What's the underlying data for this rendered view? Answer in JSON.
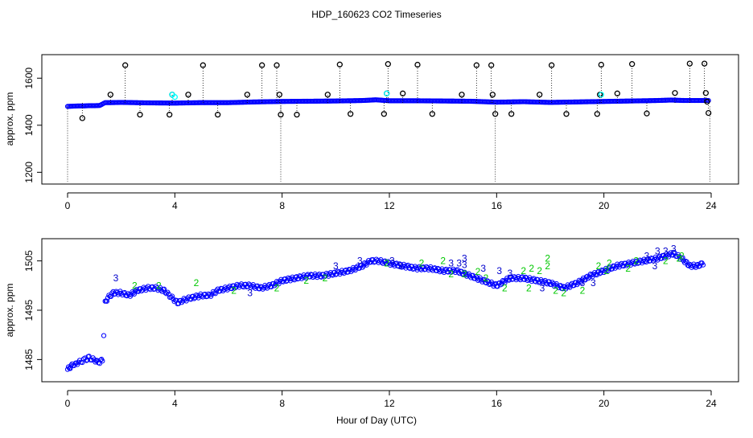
{
  "title": "HDP_160623  CO2 Timeseries",
  "xlabel": "Hour of Day (UTC)",
  "colors": {
    "axis": "#000000",
    "main_series": "#0000ff",
    "cyan_points": "#00ffff",
    "green_flag": "#00c800",
    "blue_flag": "#0000cc",
    "outlier": "#000000"
  },
  "chart_data": [
    {
      "type": "scatter",
      "panel": "top",
      "ylabel": "approx. ppm",
      "xlim": [
        0,
        24
      ],
      "ylim": [
        1150,
        1700
      ],
      "xticks": [
        0,
        4,
        8,
        12,
        16,
        20,
        24
      ],
      "yticks": [
        1200,
        1400,
        1600
      ],
      "series": [
        {
          "x": [
            0,
            0.2,
            0.4,
            0.6,
            0.8,
            1.0,
            1.2,
            1.3,
            1.4,
            1.6,
            2.0,
            3.0,
            4.0,
            5.0,
            6.0,
            7.0,
            8.0,
            9.0,
            10.0,
            11.0,
            11.5,
            12.0,
            13.0,
            14.0,
            15.0,
            15.5,
            16.0,
            17.0,
            18.0,
            19.0,
            20.0,
            21.0,
            22.0,
            22.5,
            23.0,
            23.5,
            23.9
          ],
          "y": [
            1480,
            1481,
            1482,
            1482,
            1483,
            1483,
            1484,
            1490,
            1496,
            1496,
            1497,
            1495,
            1494,
            1496,
            1496,
            1499,
            1501,
            1502,
            1503,
            1505,
            1508,
            1504,
            1504,
            1503,
            1502,
            1500,
            1498,
            1500,
            1497,
            1499,
            1501,
            1503,
            1505,
            1507,
            1505,
            1505,
            1505
          ]
        }
      ],
      "outliers": {
        "x": [
          0.55,
          1.6,
          2.15,
          2.7,
          3.8,
          3.9,
          4.5,
          5.05,
          5.6,
          6.7,
          7.25,
          7.8,
          7.9,
          7.95,
          8.55,
          9.7,
          10.15,
          10.55,
          11.8,
          11.9,
          11.95,
          12.5,
          13.05,
          13.6,
          14.7,
          15.25,
          15.8,
          15.85,
          15.95,
          16.55,
          17.6,
          18.05,
          18.6,
          19.75,
          19.85,
          19.9,
          20.5,
          21.05,
          21.6,
          22.65,
          23.2,
          23.75,
          23.8,
          23.85,
          23.9
        ],
        "y": [
          1430,
          1530,
          1655,
          1445,
          1445,
          1530,
          1530,
          1655,
          1445,
          1530,
          1655,
          1655,
          1530,
          1445,
          1445,
          1530,
          1658,
          1448,
          1448,
          1535,
          1660,
          1535,
          1657,
          1448,
          1530,
          1655,
          1655,
          1530,
          1448,
          1448,
          1530,
          1655,
          1448,
          1448,
          1530,
          1657,
          1535,
          1660,
          1450,
          1537,
          1662,
          1662,
          1537,
          1500,
          1452
        ]
      },
      "cyan_points": {
        "x": [
          3.9,
          4.0,
          11.9,
          19.9
        ],
        "y": [
          1530,
          1520,
          1535,
          1530
        ]
      }
    },
    {
      "type": "scatter",
      "panel": "bottom",
      "ylabel": "approx. ppm",
      "xlim": [
        0,
        24
      ],
      "ylim": [
        1480.5,
        1509.5
      ],
      "xticks": [
        0,
        4,
        8,
        12,
        16,
        20,
        24
      ],
      "yticks": [
        1485,
        1495,
        1505
      ],
      "series": [
        {
          "x": [
            0,
            0.1,
            0.2,
            0.3,
            0.4,
            0.5,
            0.6,
            0.7,
            0.8,
            0.9,
            1.0,
            1.1,
            1.2,
            1.3,
            1.35,
            1.4,
            1.5,
            1.7,
            2.0,
            2.3,
            2.6,
            3.0,
            3.3,
            3.6,
            3.9,
            4.1,
            4.3,
            4.6,
            5.0,
            5.3,
            5.6,
            6.0,
            6.4,
            6.8,
            7.2,
            7.6,
            8.0,
            8.5,
            9.0,
            9.5,
            10.0,
            10.5,
            11.0,
            11.3,
            11.6,
            12.0,
            12.5,
            13.0,
            13.5,
            14.0,
            14.5,
            15.0,
            15.5,
            16.0,
            16.5,
            17.0,
            17.5,
            18.0,
            18.5,
            19.0,
            19.5,
            20.0,
            20.5,
            21.0,
            21.5,
            22.0,
            22.3,
            22.6,
            22.9,
            23.2,
            23.5,
            23.7
          ],
          "y": [
            1483,
            1483.5,
            1484,
            1484,
            1484.5,
            1484.5,
            1485,
            1485,
            1485.5,
            1485,
            1485,
            1484.5,
            1484.5,
            1485,
            1490,
            1496.5,
            1497.5,
            1498.5,
            1498.5,
            1498,
            1499,
            1499.5,
            1499.5,
            1499,
            1497.5,
            1496.5,
            1497,
            1497.5,
            1498,
            1498,
            1499,
            1499.5,
            1500,
            1500,
            1499.5,
            1500,
            1501,
            1501.5,
            1502,
            1502,
            1502.5,
            1503,
            1504,
            1505,
            1505,
            1504.5,
            1504,
            1503.5,
            1503.5,
            1503,
            1503,
            1502,
            1501,
            1500,
            1501.5,
            1501.5,
            1501,
            1500.5,
            1499.5,
            1500.5,
            1502,
            1503,
            1504,
            1504.5,
            1505,
            1505.5,
            1506,
            1506.5,
            1505.5,
            1504,
            1504,
            1504.5
          ]
        }
      ],
      "flag_labels": [
        {
          "text": "3",
          "x": 1.8,
          "y": 1501.5,
          "flag": "blue"
        },
        {
          "text": "2",
          "x": 2.5,
          "y": 1500,
          "flag": "green"
        },
        {
          "text": "2",
          "x": 3.4,
          "y": 1500,
          "flag": "green"
        },
        {
          "text": "2",
          "x": 4.8,
          "y": 1500.5,
          "flag": "green"
        },
        {
          "text": "2",
          "x": 6.2,
          "y": 1499,
          "flag": "green"
        },
        {
          "text": "3",
          "x": 6.8,
          "y": 1498.5,
          "flag": "blue"
        },
        {
          "text": "2",
          "x": 7.8,
          "y": 1499.5,
          "flag": "green"
        },
        {
          "text": "2",
          "x": 8.9,
          "y": 1501,
          "flag": "green"
        },
        {
          "text": "2",
          "x": 9.6,
          "y": 1501.5,
          "flag": "green"
        },
        {
          "text": "3",
          "x": 10.0,
          "y": 1504,
          "flag": "blue"
        },
        {
          "text": "3",
          "x": 10.9,
          "y": 1505,
          "flag": "blue"
        },
        {
          "text": "2",
          "x": 11.9,
          "y": 1504.5,
          "flag": "green"
        },
        {
          "text": "3",
          "x": 12.1,
          "y": 1505,
          "flag": "blue"
        },
        {
          "text": "3",
          "x": 12.4,
          "y": 1504,
          "flag": "blue"
        },
        {
          "text": "2",
          "x": 13.2,
          "y": 1504.5,
          "flag": "green"
        },
        {
          "text": "2",
          "x": 14.0,
          "y": 1505,
          "flag": "green"
        },
        {
          "text": "3",
          "x": 14.3,
          "y": 1504.5,
          "flag": "blue"
        },
        {
          "text": "3",
          "x": 14.6,
          "y": 1504.5,
          "flag": "blue"
        },
        {
          "text": "3",
          "x": 14.8,
          "y": 1505.5,
          "flag": "blue"
        },
        {
          "text": "3",
          "x": 14.8,
          "y": 1504.2,
          "flag": "blue"
        },
        {
          "text": "2",
          "x": 14.3,
          "y": 1502.3,
          "flag": "green"
        },
        {
          "text": "2",
          "x": 14.8,
          "y": 1502.3,
          "flag": "green"
        },
        {
          "text": "2",
          "x": 15.3,
          "y": 1502.8,
          "flag": "green"
        },
        {
          "text": "3",
          "x": 15.5,
          "y": 1503.5,
          "flag": "blue"
        },
        {
          "text": "2",
          "x": 15.6,
          "y": 1501.5,
          "flag": "green"
        },
        {
          "text": "3",
          "x": 16.1,
          "y": 1503,
          "flag": "blue"
        },
        {
          "text": "3",
          "x": 16.5,
          "y": 1502.5,
          "flag": "blue"
        },
        {
          "text": "2",
          "x": 16.3,
          "y": 1499.5,
          "flag": "green"
        },
        {
          "text": "2",
          "x": 17.0,
          "y": 1503,
          "flag": "green"
        },
        {
          "text": "2",
          "x": 17.3,
          "y": 1503.5,
          "flag": "green"
        },
        {
          "text": "2",
          "x": 17.2,
          "y": 1499.5,
          "flag": "green"
        },
        {
          "text": "2",
          "x": 17.6,
          "y": 1503,
          "flag": "green"
        },
        {
          "text": "2",
          "x": 17.9,
          "y": 1505.5,
          "flag": "green"
        },
        {
          "text": "2",
          "x": 17.9,
          "y": 1504,
          "flag": "green"
        },
        {
          "text": "3",
          "x": 17.7,
          "y": 1499.5,
          "flag": "blue"
        },
        {
          "text": "2",
          "x": 18.2,
          "y": 1499,
          "flag": "green"
        },
        {
          "text": "2",
          "x": 18.5,
          "y": 1498.5,
          "flag": "green"
        },
        {
          "text": "2",
          "x": 19.2,
          "y": 1499,
          "flag": "green"
        },
        {
          "text": "3",
          "x": 19.2,
          "y": 1500.5,
          "flag": "blue"
        },
        {
          "text": "3",
          "x": 19.6,
          "y": 1500.5,
          "flag": "blue"
        },
        {
          "text": "2",
          "x": 19.8,
          "y": 1504,
          "flag": "green"
        },
        {
          "text": "2",
          "x": 20.1,
          "y": 1503,
          "flag": "green"
        },
        {
          "text": "2",
          "x": 20.2,
          "y": 1504.5,
          "flag": "green"
        },
        {
          "text": "2",
          "x": 20.9,
          "y": 1503.5,
          "flag": "green"
        },
        {
          "text": "2",
          "x": 21.2,
          "y": 1505,
          "flag": "green"
        },
        {
          "text": "3",
          "x": 21.6,
          "y": 1506,
          "flag": "blue"
        },
        {
          "text": "3",
          "x": 22.0,
          "y": 1507,
          "flag": "blue"
        },
        {
          "text": "3",
          "x": 22.3,
          "y": 1507,
          "flag": "blue"
        },
        {
          "text": "3",
          "x": 22.6,
          "y": 1507.5,
          "flag": "blue"
        },
        {
          "text": "2",
          "x": 22.8,
          "y": 1505.5,
          "flag": "green"
        },
        {
          "text": "3",
          "x": 21.9,
          "y": 1504,
          "flag": "blue"
        },
        {
          "text": "2",
          "x": 22.3,
          "y": 1505,
          "flag": "green"
        },
        {
          "text": "2",
          "x": 22.9,
          "y": 1506,
          "flag": "green"
        }
      ]
    }
  ]
}
